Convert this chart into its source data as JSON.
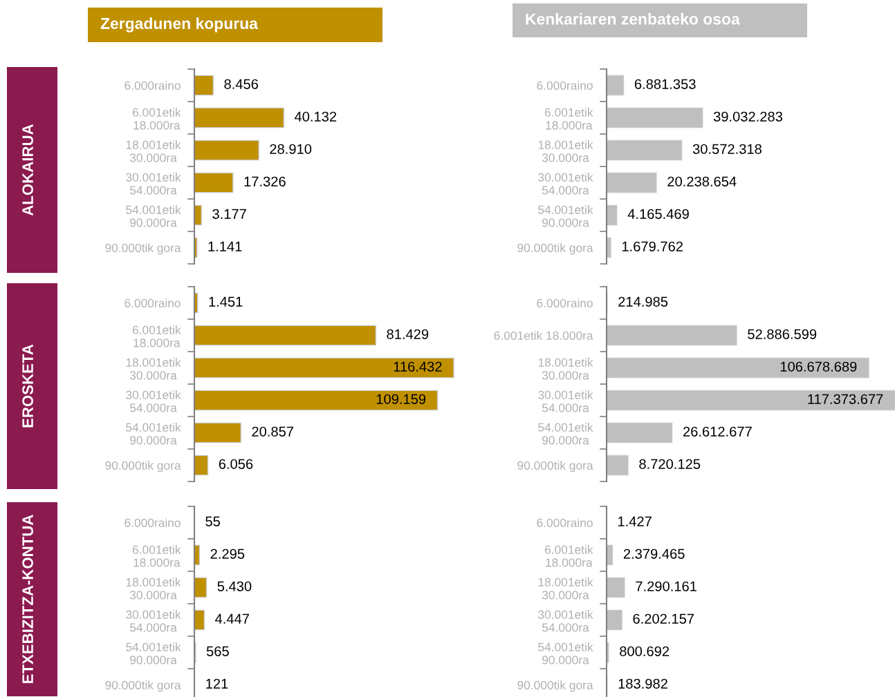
{
  "chart_data": [
    {
      "type": "bar",
      "orientation": "horizontal",
      "title": "Zergadunen kopurua",
      "ylabel": "ALOKAIRUA",
      "color": "#bf9000",
      "categories": [
        "6.000raino",
        "6.001etik\n18.000ra",
        "18.001etik\n30.000ra",
        "30.001etik\n54.000ra",
        "54.001etik\n90.000ra",
        "90.000tik gora"
      ],
      "values": [
        8456,
        40132,
        28910,
        17326,
        3177,
        1141
      ],
      "value_labels": [
        "8.456",
        "40.132",
        "28.910",
        "17.326",
        "3.177",
        "1.141"
      ]
    },
    {
      "type": "bar",
      "orientation": "horizontal",
      "title": "Kenkariaren zenbateko osoa",
      "color": "#bfbfbf",
      "categories": [
        "6.000raino",
        "6.001etik\n18.000ra",
        "18.001etik\n30.000ra",
        "30.001etik\n54.000ra",
        "54.001etik\n90.000ra",
        "90.000tik gora"
      ],
      "values": [
        6881353,
        39032283,
        30572318,
        20238654,
        4165469,
        1679762
      ],
      "value_labels": [
        "6.881.353",
        "39.032.283",
        "30.572.318",
        "20.238.654",
        "4.165.469",
        "1.679.762"
      ]
    },
    {
      "type": "bar",
      "orientation": "horizontal",
      "ylabel": "EROSKETA",
      "color": "#bf9000",
      "categories": [
        "6.000raino",
        "6.001etik\n18.000ra",
        "18.001etik\n30.000ra",
        "30.001etik\n54.000ra",
        "54.001etik\n90.000ra",
        "90.000tik gora"
      ],
      "values": [
        1451,
        81429,
        116432,
        109159,
        20857,
        6056
      ],
      "value_labels": [
        "1.451",
        "81.429",
        "116.432",
        "109.159",
        "20.857",
        "6.056"
      ]
    },
    {
      "type": "bar",
      "orientation": "horizontal",
      "color": "#bfbfbf",
      "categories": [
        "6.000raino",
        "6.001etik 18.000ra",
        "18.001etik\n30.000ra",
        "30.001etik\n54.000ra",
        "54.001etik\n90.000ra",
        "90.000tik gora"
      ],
      "values": [
        214985,
        52886599,
        106678689,
        117373677,
        26612677,
        8720125
      ],
      "value_labels": [
        "214.985",
        "52.886.599",
        "106.678.689",
        "117.373.677",
        "26.612.677",
        "8.720.125"
      ]
    },
    {
      "type": "bar",
      "orientation": "horizontal",
      "ylabel": "ETXEBIZITZA-KONTUA",
      "color": "#bf9000",
      "categories": [
        "6.000raino",
        "6.001etik\n18.000ra",
        "18.001etik\n30.000ra",
        "30.001etik\n54.000ra",
        "54.001etik\n90.000ra",
        "90.000tik gora"
      ],
      "values": [
        55,
        2295,
        5430,
        4447,
        565,
        121
      ],
      "value_labels": [
        "55",
        "2.295",
        "5.430",
        "4.447",
        "565",
        "121"
      ]
    },
    {
      "type": "bar",
      "orientation": "horizontal",
      "color": "#bfbfbf",
      "categories": [
        "6.000raino",
        "6.001etik\n18.000ra",
        "18.001etik\n30.000ra",
        "30.001etik\n54.000ra",
        "54.001etik\n90.000ra",
        "90.000tik gora"
      ],
      "values": [
        1427,
        2379465,
        7290161,
        6202157,
        800692,
        183982
      ],
      "value_labels": [
        "1.427",
        "2.379.465",
        "7.290.161",
        "6.202.157",
        "800.692",
        "183.982"
      ]
    }
  ]
}
